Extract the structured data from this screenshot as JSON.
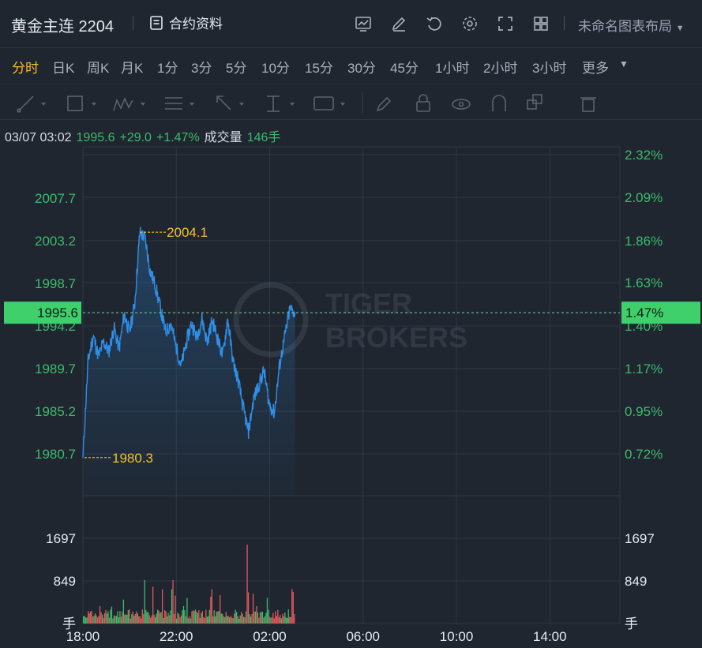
{
  "header": {
    "symbol": "黄金主连 2204",
    "contract_info": "合约资料",
    "layout_name": "未命名图表布局",
    "icons": [
      "chart-icon",
      "edit-icon",
      "undo-icon",
      "settings-icon",
      "fullscreen-icon",
      "grid-icon"
    ]
  },
  "periods": [
    "分时",
    "日K",
    "周K",
    "月K",
    "1分",
    "3分",
    "5分",
    "10分",
    "15分",
    "30分",
    "45分",
    "1小时",
    "2小时",
    "3小时",
    "更多"
  ],
  "active_period": "分时",
  "info_bar": {
    "datetime": "03/07 03:02",
    "price": "1995.6",
    "change": "+29.0",
    "change_pct": "+1.47%",
    "volume_label": "成交量",
    "volume": "146手"
  },
  "watermark": [
    "TIGER",
    "BROKERS"
  ],
  "colors": {
    "up": "#3dbb6b",
    "line": "#2f8fe8",
    "highlight": "#3fcf6b",
    "annot": "#f2c12e",
    "bg": "#1f2630"
  },
  "chart_data": {
    "type": "line",
    "x_ticks": [
      "18:00",
      "22:00",
      "02:00",
      "06:00",
      "10:00",
      "14:00"
    ],
    "x_tick_fraction": [
      0.0,
      0.1739,
      0.3478,
      0.5217,
      0.6957,
      0.8696
    ],
    "price_axis_left": [
      "2007.7",
      "2003.2",
      "1998.7",
      "1994.2",
      "1989.7",
      "1985.2",
      "1980.7"
    ],
    "price_axis_values": [
      2007.7,
      2003.2,
      1998.7,
      1994.2,
      1989.7,
      1985.2,
      1980.7
    ],
    "pct_axis_right": [
      "2.32%",
      "2.09%",
      "1.86%",
      "1.63%",
      "1.40%",
      "1.17%",
      "0.95%",
      "0.72%"
    ],
    "current_price": "1995.6",
    "current_pct": "1.47%",
    "high_label": "2004.1",
    "low_label": "1980.3",
    "volume_axis": [
      "1697",
      "849",
      "手"
    ],
    "volume_max": 1697,
    "trading_progress": 0.395,
    "series_anchor_values": [
      1980.3,
      1990.5,
      1993.2,
      1991.0,
      1992.5,
      1991.5,
      1994.0,
      1991.8,
      1995.5,
      1993.5,
      1996.5,
      2004.1,
      2003.5,
      2000.0,
      1998.5,
      1996.0,
      1993.5,
      1994.5,
      1992.0,
      1990.0,
      1992.5,
      1994.5,
      1993.0,
      1995.0,
      1992.5,
      1994.8,
      1993.0,
      1991.0,
      1995.0,
      1990.5,
      1988.5,
      1985.5,
      1983.0,
      1986.5,
      1988.0,
      1989.5,
      1986.0,
      1985.0,
      1990.0,
      1993.0,
      1996.0,
      1995.6
    ]
  }
}
